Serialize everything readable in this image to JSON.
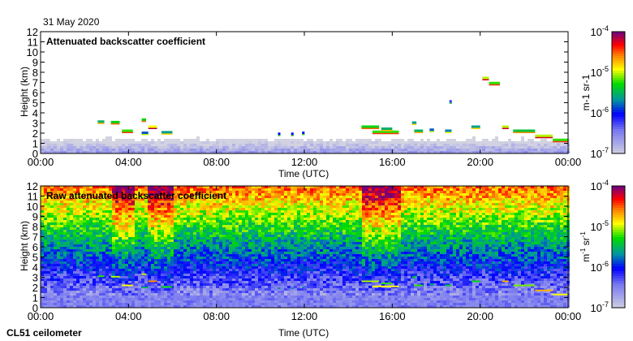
{
  "date": "31 May 2020",
  "instrument": "CL51 ceilometer",
  "chart_data": [
    {
      "type": "heatmap",
      "title": "Attenuated backscatter coefficient",
      "xlabel": "Time (UTC)",
      "ylabel": "Height (km)",
      "xlim": [
        0,
        24
      ],
      "ylim": [
        0,
        12
      ],
      "xticks": [
        "00:00",
        "04:00",
        "08:00",
        "12:00",
        "16:00",
        "20:00",
        "00:00"
      ],
      "yticks": [
        "0",
        "1",
        "2",
        "3",
        "4",
        "5",
        "6",
        "7",
        "8",
        "9",
        "10",
        "11",
        "12"
      ],
      "boundary_layer_top_km": 1.3,
      "features": [
        {
          "t0": 2.6,
          "t1": 2.9,
          "h": 3.1,
          "log": -5.5
        },
        {
          "t0": 3.2,
          "t1": 3.6,
          "h": 3.05,
          "log": -5.3
        },
        {
          "t0": 3.7,
          "t1": 4.2,
          "h": 2.2,
          "log": -5.2
        },
        {
          "t0": 4.6,
          "t1": 4.8,
          "h": 3.3,
          "log": -5.3
        },
        {
          "t0": 4.6,
          "t1": 4.9,
          "h": 2.0,
          "log": -5.8
        },
        {
          "t0": 4.9,
          "t1": 5.3,
          "h": 2.6,
          "log": -4.9
        },
        {
          "t0": 5.5,
          "t1": 6.0,
          "h": 2.05,
          "log": -5.6
        },
        {
          "t0": 10.8,
          "t1": 10.9,
          "h": 1.9,
          "log": -6
        },
        {
          "t0": 11.4,
          "t1": 11.5,
          "h": 1.9,
          "log": -6
        },
        {
          "t0": 11.9,
          "t1": 12.0,
          "h": 2.0,
          "log": -6
        },
        {
          "t0": 14.6,
          "t1": 15.4,
          "h": 2.6,
          "log": -5.3
        },
        {
          "t0": 15.1,
          "t1": 16.3,
          "h": 2.1,
          "log": -5.2
        },
        {
          "t0": 15.5,
          "t1": 16.0,
          "h": 2.4,
          "log": -5.5
        },
        {
          "t0": 16.9,
          "t1": 17.1,
          "h": 3.0,
          "log": -5.6
        },
        {
          "t0": 17.0,
          "t1": 17.4,
          "h": 2.2,
          "log": -5.5
        },
        {
          "t0": 17.7,
          "t1": 17.9,
          "h": 2.3,
          "log": -5.8
        },
        {
          "t0": 18.4,
          "t1": 18.7,
          "h": 2.2,
          "log": -5.7
        },
        {
          "t0": 18.6,
          "t1": 18.65,
          "h": 5.1,
          "log": -6.2
        },
        {
          "t0": 19.6,
          "t1": 20.0,
          "h": 2.6,
          "log": -5.6
        },
        {
          "t0": 20.1,
          "t1": 20.4,
          "h": 7.4,
          "log": -5.0
        },
        {
          "t0": 20.4,
          "t1": 20.9,
          "h": 6.9,
          "log": -5.2
        },
        {
          "t0": 21.0,
          "t1": 21.3,
          "h": 2.6,
          "log": -5.0
        },
        {
          "t0": 21.5,
          "t1": 22.5,
          "h": 2.2,
          "log": -5.4
        },
        {
          "t0": 22.5,
          "t1": 23.3,
          "h": 1.7,
          "log": -5.0
        },
        {
          "t0": 23.3,
          "t1": 24,
          "h": 1.3,
          "log": -5.2
        }
      ]
    },
    {
      "type": "heatmap",
      "title": "Raw attenuated backscatter coefficient",
      "xlabel": "Time (UTC)",
      "ylabel": "Height (km)",
      "xlim": [
        0,
        24
      ],
      "ylim": [
        0,
        12
      ],
      "xticks": [
        "00:00",
        "04:00",
        "08:00",
        "12:00",
        "16:00",
        "20:00",
        "00:00"
      ],
      "yticks": [
        "0",
        "1",
        "2",
        "3",
        "4",
        "5",
        "6",
        "7",
        "8",
        "9",
        "10",
        "11",
        "12"
      ],
      "noise_increase_periods": [
        [
          3.2,
          4.2
        ],
        [
          4.8,
          6.0
        ],
        [
          14.5,
          16.3
        ]
      ]
    }
  ],
  "colorbar": {
    "label": "m-1 sr-1",
    "label_main": "m",
    "exp1": "-1",
    "label_sr": " sr",
    "exp2": "-1",
    "ticks": [
      {
        "base": "10",
        "exp": "-4"
      },
      {
        "base": "10",
        "exp": "-5"
      },
      {
        "base": "10",
        "exp": "-6"
      },
      {
        "base": "10",
        "exp": "-7"
      }
    ],
    "range_log10": [
      -7,
      -4
    ]
  }
}
